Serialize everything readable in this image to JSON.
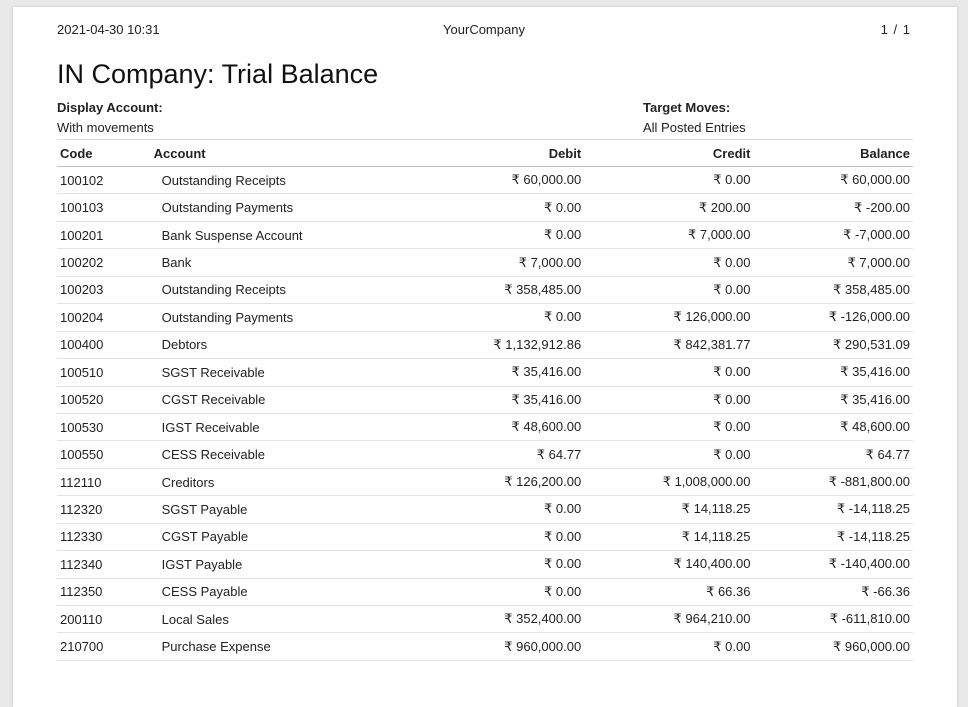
{
  "header": {
    "datetime": "2021-04-30 10:31",
    "company": "YourCompany",
    "page_current": "1",
    "page_sep": "/",
    "page_total": "1"
  },
  "title": "IN Company: Trial Balance",
  "filters": {
    "display_account_label": "Display Account:",
    "display_account_value": "With movements",
    "target_moves_label": "Target Moves:",
    "target_moves_value": "All Posted Entries"
  },
  "table": {
    "columns": [
      "Code",
      "Account",
      "Debit",
      "Credit",
      "Balance"
    ],
    "rows": [
      [
        "100102",
        "Outstanding Receipts",
        "₹ 60,000.00",
        "₹ 0.00",
        "₹ 60,000.00"
      ],
      [
        "100103",
        "Outstanding Payments",
        "₹ 0.00",
        "₹ 200.00",
        "₹ -200.00"
      ],
      [
        "100201",
        "Bank Suspense Account",
        "₹ 0.00",
        "₹ 7,000.00",
        "₹ -7,000.00"
      ],
      [
        "100202",
        "Bank",
        "₹ 7,000.00",
        "₹ 0.00",
        "₹ 7,000.00"
      ],
      [
        "100203",
        "Outstanding Receipts",
        "₹ 358,485.00",
        "₹ 0.00",
        "₹ 358,485.00"
      ],
      [
        "100204",
        "Outstanding Payments",
        "₹ 0.00",
        "₹ 126,000.00",
        "₹ -126,000.00"
      ],
      [
        "100400",
        "Debtors",
        "₹ 1,132,912.86",
        "₹ 842,381.77",
        "₹ 290,531.09"
      ],
      [
        "100510",
        "SGST Receivable",
        "₹ 35,416.00",
        "₹ 0.00",
        "₹ 35,416.00"
      ],
      [
        "100520",
        "CGST Receivable",
        "₹ 35,416.00",
        "₹ 0.00",
        "₹ 35,416.00"
      ],
      [
        "100530",
        "IGST Receivable",
        "₹ 48,600.00",
        "₹ 0.00",
        "₹ 48,600.00"
      ],
      [
        "100550",
        "CESS Receivable",
        "₹ 64.77",
        "₹ 0.00",
        "₹ 64.77"
      ],
      [
        "112110",
        "Creditors",
        "₹ 126,200.00",
        "₹ 1,008,000.00",
        "₹ -881,800.00"
      ],
      [
        "112320",
        "SGST Payable",
        "₹ 0.00",
        "₹ 14,118.25",
        "₹ -14,118.25"
      ],
      [
        "112330",
        "CGST Payable",
        "₹ 0.00",
        "₹ 14,118.25",
        "₹ -14,118.25"
      ],
      [
        "112340",
        "IGST Payable",
        "₹ 0.00",
        "₹ 140,400.00",
        "₹ -140,400.00"
      ],
      [
        "112350",
        "CESS Payable",
        "₹ 0.00",
        "₹ 66.36",
        "₹ -66.36"
      ],
      [
        "200110",
        "Local Sales",
        "₹ 352,400.00",
        "₹ 964,210.00",
        "₹ -611,810.00"
      ],
      [
        "210700",
        "Purchase Expense",
        "₹ 960,000.00",
        "₹ 0.00",
        "₹ 960,000.00"
      ]
    ]
  }
}
